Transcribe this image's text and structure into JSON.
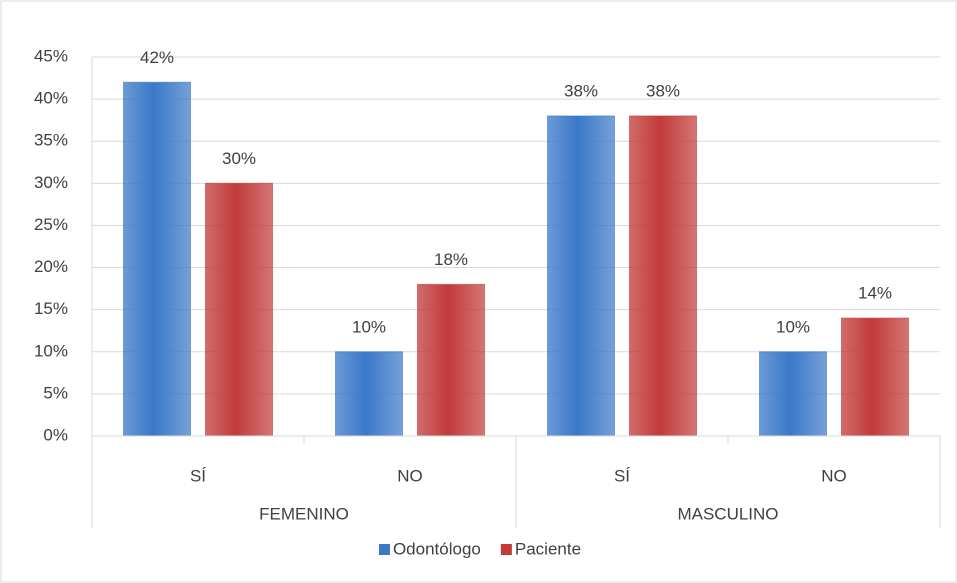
{
  "chart_data": {
    "type": "bar",
    "categories": [
      "SÍ",
      "NO",
      "SÍ",
      "NO"
    ],
    "groups": [
      "FEMENINO",
      "MASCULINO"
    ],
    "series": [
      {
        "name": "Odontólogo",
        "color": "#3a78c8",
        "values": [
          42,
          10,
          38,
          10
        ],
        "value_labels": [
          "42%",
          "10%",
          "38%",
          "10%"
        ]
      },
      {
        "name": "Paciente",
        "color": "#c23a3a",
        "values": [
          30,
          18,
          38,
          14
        ],
        "value_labels": [
          "30%",
          "18%",
          "38%",
          "14%"
        ]
      }
    ],
    "ylim": [
      0,
      45
    ],
    "yticks": [
      {
        "value": 0,
        "label": "0%"
      },
      {
        "value": 5,
        "label": "5%"
      },
      {
        "value": 10,
        "label": "10%"
      },
      {
        "value": 15,
        "label": "15%"
      },
      {
        "value": 20,
        "label": "20%"
      },
      {
        "value": 25,
        "label": "25%"
      },
      {
        "value": 30,
        "label": "30%"
      },
      {
        "value": 35,
        "label": "35%"
      },
      {
        "value": 40,
        "label": "40%"
      },
      {
        "value": 45,
        "label": "45%"
      }
    ],
    "grid": true,
    "legend": "bottom"
  }
}
